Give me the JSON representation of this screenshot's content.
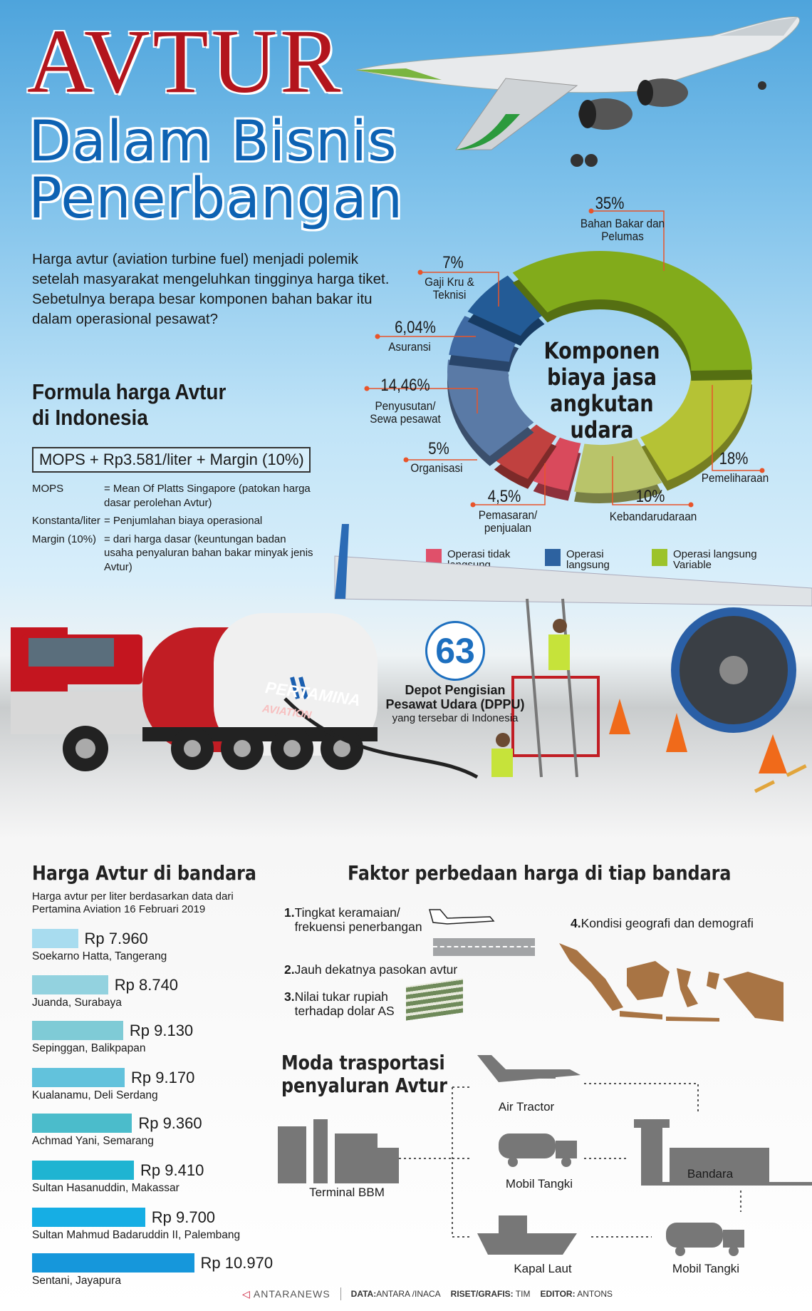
{
  "title": {
    "main": "AVTUR",
    "line2": "Dalam Bisnis",
    "line3": "Penerbangan"
  },
  "intro": "Harga avtur (aviation turbine fuel) menjadi polemik setelah masyarakat mengeluhkan tingginya harga tiket. Sebetulnya berapa besar komponen bahan bakar itu dalam operasional pesawat?",
  "formula": {
    "heading_1": "Formula harga Avtur",
    "heading_2": "di Indonesia",
    "expression": "MOPS + Rp3.581/liter + Margin (10%)",
    "definitions": [
      {
        "term": "MOPS",
        "desc": "= Mean Of Platts Singapore (patokan harga dasar perolehan Avtur)"
      },
      {
        "term": "Konstanta/liter",
        "desc": "= Penjumlahan biaya operasional"
      },
      {
        "term": "Margin (10%)",
        "desc": "= dari harga dasar (keuntungan badan usaha penyaluran bahan bakar minyak jenis Avtur)"
      }
    ]
  },
  "chart_data": {
    "type": "pie",
    "title": "Komponen biaya jasa angkutan udara",
    "slices": [
      {
        "label": "Pemeliharaan",
        "value": 18,
        "pct_text": "18%",
        "group": "Operasi langsung Variable",
        "color": "#b5c235"
      },
      {
        "label": "Kebandarudaraan",
        "value": 10,
        "pct_text": "10%",
        "group": "Operasi langsung Variable",
        "color": "#b9c46a"
      },
      {
        "label": "Pemasaran/ penjualan",
        "value": 4.5,
        "pct_text": "4,5%",
        "group": "Operasi tidak langsung",
        "color": "#d94a5c"
      },
      {
        "label": "Organisasi",
        "value": 5,
        "pct_text": "5%",
        "group": "Operasi tidak langsung",
        "color": "#c0413f"
      },
      {
        "label": "Penyusutan/ Sewa pesawat",
        "value": 14.46,
        "pct_text": "14,46%",
        "group": "Operasi langsung",
        "color": "#5a7aa6"
      },
      {
        "label": "Asuransi",
        "value": 6.04,
        "pct_text": "6,04%",
        "group": "Operasi langsung",
        "color": "#3f6aa3"
      },
      {
        "label": "Gaji Kru & Teknisi",
        "value": 7,
        "pct_text": "7%",
        "group": "Operasi langsung",
        "color": "#235b96"
      },
      {
        "label": "Bahan Bakar dan Pelumas",
        "value": 35,
        "pct_text": "35%",
        "group": "Operasi langsung Variable",
        "color": "#82ab1b"
      }
    ],
    "legend": [
      {
        "label": "Operasi tidak langsung",
        "color": "#e0506a"
      },
      {
        "label": "Operasi langsung",
        "color": "#2d62a0"
      },
      {
        "label": "Operasi langsung Variable",
        "color": "#9cc32a"
      }
    ]
  },
  "dppu": {
    "count": "63",
    "line1": "Depot Pengisian",
    "line2": "Pesawat Udara (DPPU)",
    "line3": "yang tersebar di Indonesia"
  },
  "truck": {
    "brand": "PERTAMINA",
    "sub": "AVIATION"
  },
  "prices": {
    "heading": "Harga Avtur di bandara",
    "subtitle_1": "Harga avtur per liter berdasarkan data dari",
    "subtitle_2": "Pertamina Aviation 16 Februari 2019",
    "items": [
      {
        "airport": "Soekarno Hatta, Tangerang",
        "price": "Rp 7.960",
        "value": 7960,
        "color": "#a8dcef"
      },
      {
        "airport": "Juanda, Surabaya",
        "price": "Rp 8.740",
        "value": 8740,
        "color": "#93d2df"
      },
      {
        "airport": "Sepinggan, Balikpapan",
        "price": "Rp 9.130",
        "value": 9130,
        "color": "#7fcbd6"
      },
      {
        "airport": "Kualanamu, Deli Serdang",
        "price": "Rp 9.170",
        "value": 9170,
        "color": "#62c2dc"
      },
      {
        "airport": "Achmad Yani, Semarang",
        "price": "Rp 9.360",
        "value": 9360,
        "color": "#4bbccb"
      },
      {
        "airport": "Sultan Hasanuddin, Makassar",
        "price": "Rp 9.410",
        "value": 9410,
        "color": "#1fb4d2"
      },
      {
        "airport": "Sultan Mahmud Badaruddin II, Palembang",
        "price": "Rp 9.700",
        "value": 9700,
        "color": "#16aee4"
      },
      {
        "airport": "Sentani, Jayapura",
        "price": "Rp 10.970",
        "value": 10970,
        "color": "#1697db"
      }
    ]
  },
  "factors": {
    "heading": "Faktor perbedaan harga di tiap bandara",
    "items": [
      {
        "num": "1.",
        "text_1": "Tingkat keramaian/",
        "text_2": "frekuensi penerbangan"
      },
      {
        "num": "2.",
        "text_1": "Jauh dekatnya pasokan avtur"
      },
      {
        "num": "3.",
        "text_1": "Nilai tukar rupiah",
        "text_2": "terhadap dolar AS"
      },
      {
        "num": "4.",
        "text_1": "Kondisi geografi dan demografi"
      }
    ]
  },
  "moda": {
    "heading_1": "Moda trasportasi",
    "heading_2": "penyaluran Avtur",
    "terminal": "Terminal BBM",
    "air_tractor": "Air Tractor",
    "mobil_tangki_1": "Mobil Tangki",
    "bandara": "Bandara",
    "kapal_laut": "Kapal Laut",
    "mobil_tangki_2": "Mobil Tangki"
  },
  "footer": {
    "logo": "ANTARANEWS",
    "data_label": "DATA:",
    "data_value": "ANTARA /INACA",
    "riset_label": "RISET/GRAFIS:",
    "riset_value": " TIM",
    "editor_label": "EDITOR:",
    "editor_value": " ANTONS"
  }
}
